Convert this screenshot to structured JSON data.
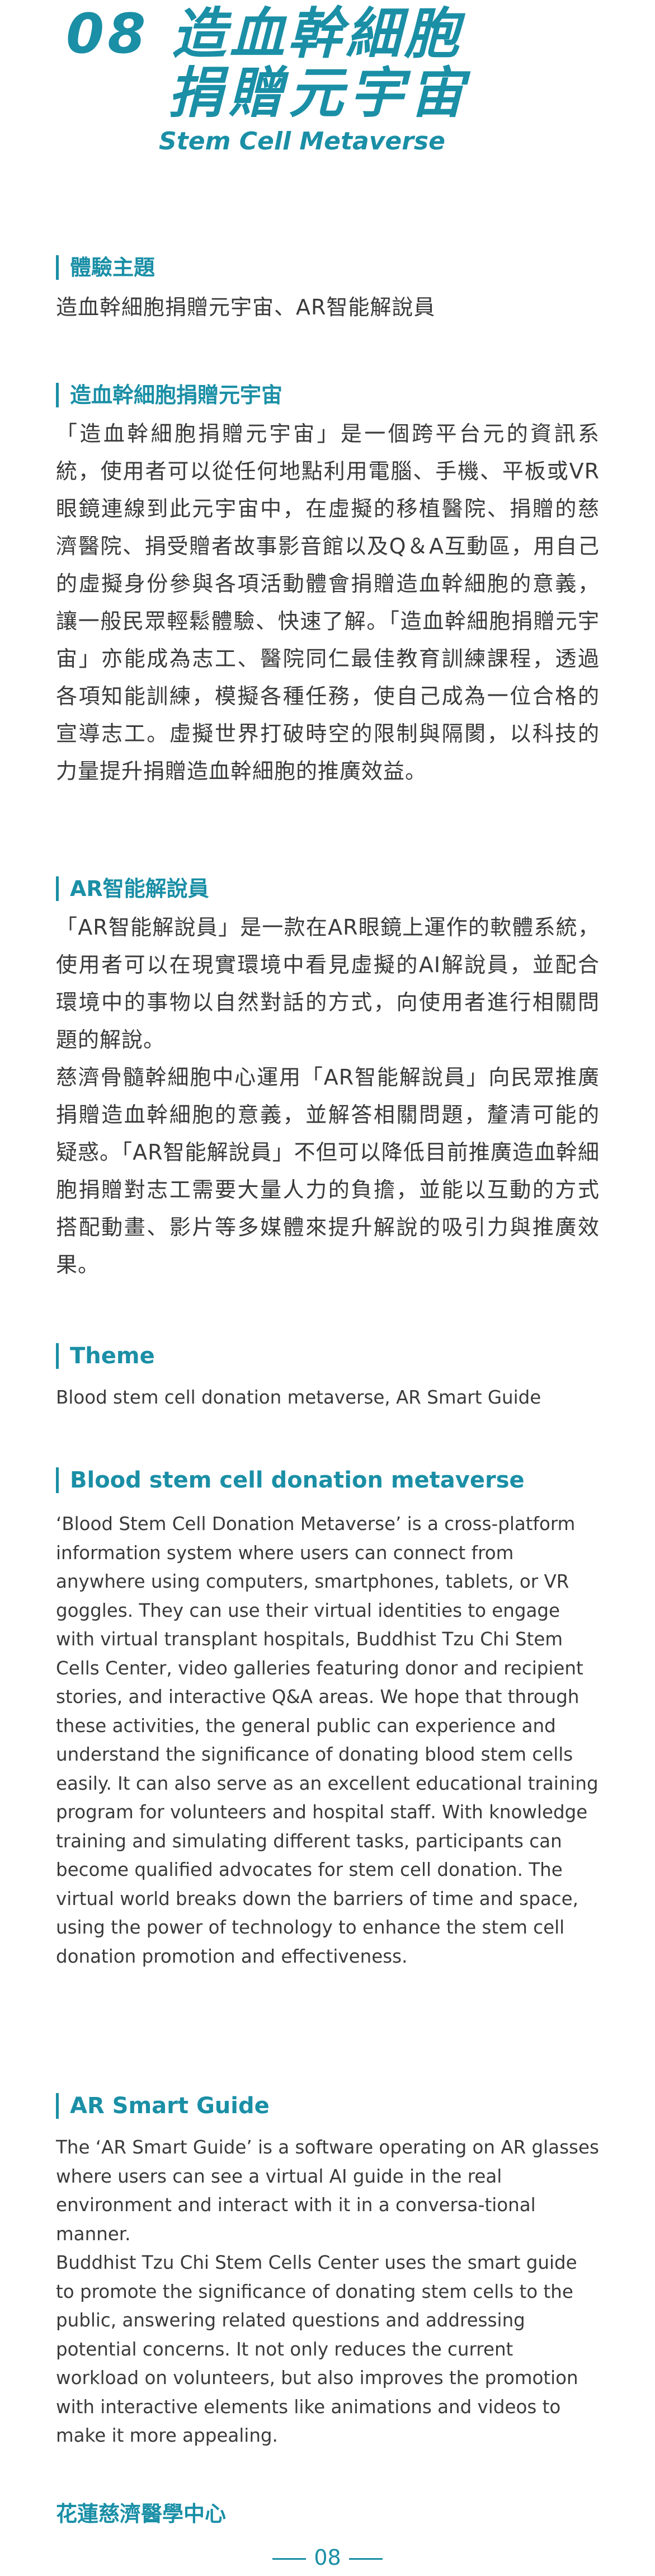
{
  "title": {
    "line1": "08 造血幹細胞",
    "line2": "捐贈元宇宙",
    "line3": "Stem Cell Metaverse"
  },
  "zh": {
    "theme_heading": "體驗主題",
    "theme_text": "造血幹細胞捐贈元宇宙、AR智能解說員",
    "metaverse_heading": "造血幹細胞捐贈元宇宙",
    "metaverse_text": "「造血幹細胞捐贈元宇宙」是一個跨平台元的資訊系統，使用者可以從任何地點利用電腦、手機、平板或VR眼鏡連線到此元宇宙中，在虛擬的移植醫院、捐贈的慈濟醫院、捐受贈者故事影音館以及Q＆A互動區，用自己的虛擬身份參與各項活動體會捐贈造血幹細胞的意義，讓一般民眾輕鬆體驗、快速了解。「造血幹細胞捐贈元宇宙」亦能成為志工、醫院同仁最佳教育訓練課程，透過各項知能訓練，模擬各種任務，使自己成為一位合格的宣導志工。虛擬世界打破時空的限制與隔閡，以科技的力量提升捐贈造血幹細胞的推廣效益。",
    "ar_heading": "AR智能解說員",
    "ar_text1": "「AR智能解說員」是一款在AR眼鏡上運作的軟體系統，使用者可以在現實環境中看見虛擬的AI解說員，並配合環境中的事物以自然對話的方式，向使用者進行相關問題的解說。",
    "ar_text2": "慈濟骨髓幹細胞中心運用「AR智能解說員」向民眾推廣捐贈造血幹細胞的意義，並解答相關問題，釐清可能的疑惑。「AR智能解說員」不但可以降低目前推廣造血幹細胞捐贈對志工需要大量人力的負擔，並能以互動的方式搭配動畫、影片等多媒體來提升解說的吸引力與推廣效果。"
  },
  "en": {
    "theme_heading": "Theme",
    "theme_text": "Blood stem cell donation metaverse, AR Smart Guide",
    "metaverse_heading": "Blood stem cell donation metaverse",
    "metaverse_text": "‘Blood Stem Cell Donation Metaverse’ is a cross-platform information system where users can connect from anywhere using computers, smartphones, tablets, or VR goggles. They can use their virtual identities to engage with virtual transplant hospitals, Buddhist Tzu Chi Stem Cells Center, video galleries featuring donor and recipient stories, and interactive Q&A areas. We hope that through these activities, the general public can experience and understand the significance of donating blood stem cells easily. It can also serve as an excellent educational training program for volunteers and hospital staff. With knowledge training and simulating different tasks, participants can become qualified advocates for stem cell donation. The virtual world breaks down the barriers of time and space, using the power of technology to enhance the stem cell donation promotion and effectiveness.",
    "ar_heading": "AR Smart Guide",
    "ar_text1": "The ‘AR Smart Guide’ is a software operating on AR glasses where users can see a virtual AI guide in the real environment and interact with it in a conversa-tional manner.",
    "ar_text2": "Buddhist Tzu Chi Stem Cells Center uses the smart guide to promote the significance of donating stem cells to the public, answering related questions and addressing potential concerns. It not only reduces the current workload on volunteers, but also improves the promotion with interactive elements like animations and videos to make it more appealing."
  },
  "footer": {
    "org": "花蓮慈濟醫學中心",
    "page_number": "08"
  },
  "colors": {
    "accent": "#1a8fa6",
    "text": "#3a3a3a"
  }
}
